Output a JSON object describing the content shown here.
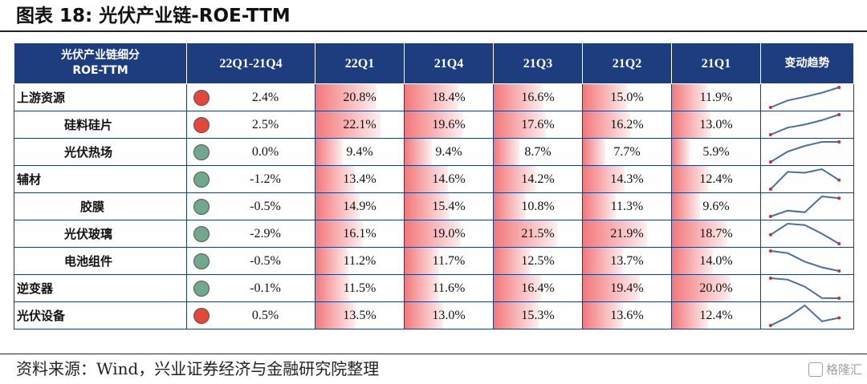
{
  "title": "图表 18:  光伏产业链-ROE-TTM",
  "source": "资料来源：Wind，兴业证券经济与金融研究院整理",
  "watermark": "格隆汇",
  "colors": {
    "header_bg": "#1d3d7e",
    "bar": "#f06064",
    "trend_up": "#e2483a",
    "trend_down": "#6fa88c",
    "spark_line": "#4a6ea5",
    "spark_dot": "#cc2f2f"
  },
  "table": {
    "header": {
      "segment_line1": "光伏产业链细分",
      "segment_line2": "ROE-TTM",
      "change": "22Q1-21Q4",
      "quarters": [
        "22Q1",
        "21Q4",
        "21Q3",
        "21Q2",
        "21Q1"
      ],
      "trend": "变动趋势"
    },
    "rows": [
      {
        "name": "上游资源",
        "level": 0,
        "change": "2.4%",
        "direction": "up",
        "values": [
          "20.8%",
          "18.4%",
          "16.6%",
          "15.0%",
          "11.9%"
        ]
      },
      {
        "name": "硅料硅片",
        "level": 1,
        "change": "2.5%",
        "direction": "up",
        "values": [
          "22.1%",
          "19.6%",
          "17.6%",
          "16.2%",
          "13.0%"
        ]
      },
      {
        "name": "光伏热场",
        "level": 1,
        "change": "0.0%",
        "direction": "down",
        "values": [
          "9.4%",
          "9.4%",
          "8.7%",
          "7.7%",
          "5.9%"
        ]
      },
      {
        "name": "辅材",
        "level": 0,
        "change": "-1.2%",
        "direction": "down",
        "values": [
          "13.4%",
          "14.6%",
          "14.2%",
          "14.3%",
          "12.4%"
        ]
      },
      {
        "name": "胶膜",
        "level": 2,
        "change": "-0.5%",
        "direction": "down",
        "values": [
          "14.9%",
          "15.4%",
          "10.8%",
          "11.3%",
          "9.6%"
        ]
      },
      {
        "name": "光伏玻璃",
        "level": 1,
        "change": "-2.9%",
        "direction": "down",
        "values": [
          "16.1%",
          "19.0%",
          "21.5%",
          "21.9%",
          "18.7%"
        ]
      },
      {
        "name": "电池组件",
        "level": 1,
        "change": "-0.5%",
        "direction": "down",
        "values": [
          "11.2%",
          "11.7%",
          "12.5%",
          "13.7%",
          "14.0%"
        ]
      },
      {
        "name": "逆变器",
        "level": 0,
        "change": "-0.1%",
        "direction": "down",
        "values": [
          "11.5%",
          "11.6%",
          "16.4%",
          "19.4%",
          "20.0%"
        ]
      },
      {
        "name": "光伏设备",
        "level": 0,
        "change": "0.5%",
        "direction": "up",
        "values": [
          "13.5%",
          "13.0%",
          "15.3%",
          "13.6%",
          "12.4%"
        ]
      }
    ]
  },
  "chart_data": {
    "type": "table",
    "title": "图表 18:  光伏产业链-ROE-TTM",
    "columns": [
      "光伏产业链细分 ROE-TTM",
      "22Q1-21Q4",
      "22Q1",
      "21Q4",
      "21Q3",
      "21Q2",
      "21Q1",
      "变动趋势"
    ],
    "quarters": [
      "22Q1",
      "21Q4",
      "21Q3",
      "21Q2",
      "21Q1"
    ],
    "series": [
      {
        "name": "上游资源",
        "change": 2.4,
        "values": [
          20.8,
          18.4,
          16.6,
          15.0,
          11.9
        ]
      },
      {
        "name": "硅料硅片",
        "change": 2.5,
        "values": [
          22.1,
          19.6,
          17.6,
          16.2,
          13.0
        ]
      },
      {
        "name": "光伏热场",
        "change": 0.0,
        "values": [
          9.4,
          9.4,
          8.7,
          7.7,
          5.9
        ]
      },
      {
        "name": "辅材",
        "change": -1.2,
        "values": [
          13.4,
          14.6,
          14.2,
          14.3,
          12.4
        ]
      },
      {
        "name": "胶膜",
        "change": -0.5,
        "values": [
          14.9,
          15.4,
          10.8,
          11.3,
          9.6
        ]
      },
      {
        "name": "光伏玻璃",
        "change": -2.9,
        "values": [
          16.1,
          19.0,
          21.5,
          21.9,
          18.7
        ]
      },
      {
        "name": "电池组件",
        "change": -0.5,
        "values": [
          11.2,
          11.7,
          12.5,
          13.7,
          14.0
        ]
      },
      {
        "name": "逆变器",
        "change": -0.1,
        "values": [
          11.5,
          11.6,
          16.4,
          19.4,
          20.0
        ]
      },
      {
        "name": "光伏设备",
        "change": 0.5,
        "values": [
          13.5,
          13.0,
          15.3,
          13.6,
          12.4
        ]
      }
    ],
    "bar_scale_max": 30,
    "sparkline_order": "21Q1 → 22Q1"
  }
}
